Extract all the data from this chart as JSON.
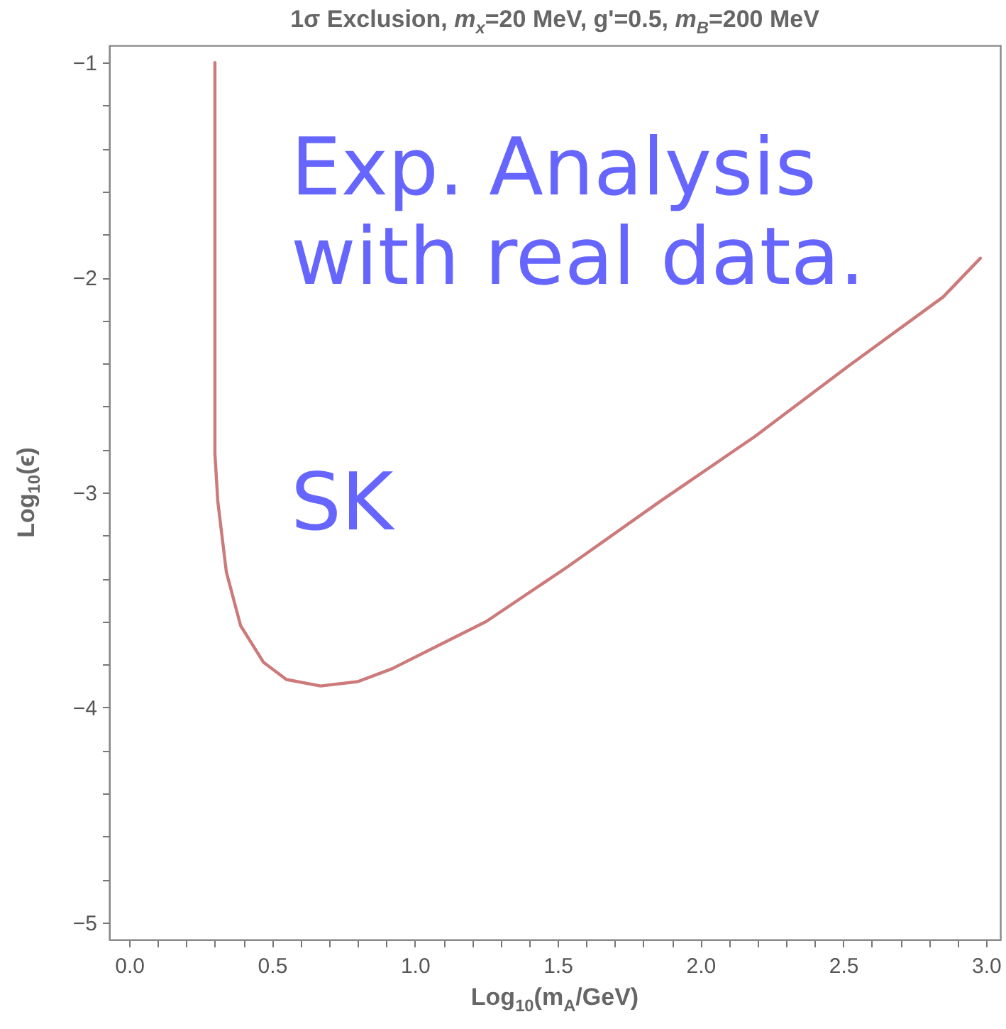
{
  "chart_data": {
    "type": "line",
    "title": "1σ Exclusion, m$_{x}$=20 MeV, g'=0.5, m$_{B}$=200 MeV",
    "xlabel": "Log$_{10}$(m$_{A}$/GeV)",
    "ylabel": "Log$_{10}$(ϵ)",
    "annotations": [
      "Exp. Analysis with real data.",
      "SK"
    ],
    "xlim": [
      -0.07,
      3.05
    ],
    "ylim": [
      -5.08,
      -0.92
    ],
    "xticks": [
      {
        "value": 0,
        "label": "0.0"
      },
      {
        "value": 0.1,
        "label": null
      },
      {
        "value": 0.2,
        "label": null
      },
      {
        "value": 0.3,
        "label": null
      },
      {
        "value": 0.4,
        "label": null
      },
      {
        "value": 0.5,
        "label": "0.5"
      },
      {
        "value": 0.6,
        "label": null
      },
      {
        "value": 0.7,
        "label": null
      },
      {
        "value": 0.8,
        "label": null
      },
      {
        "value": 0.9,
        "label": null
      },
      {
        "value": 1,
        "label": "1.0"
      },
      {
        "value": 1.1,
        "label": null
      },
      {
        "value": 1.2,
        "label": null
      },
      {
        "value": 1.3,
        "label": null
      },
      {
        "value": 1.4,
        "label": null
      },
      {
        "value": 1.5,
        "label": "1.5"
      },
      {
        "value": 1.6,
        "label": null
      },
      {
        "value": 1.7,
        "label": null
      },
      {
        "value": 1.8,
        "label": null
      },
      {
        "value": 1.9,
        "label": null
      },
      {
        "value": 2,
        "label": "2.0"
      },
      {
        "value": 2.1,
        "label": null
      },
      {
        "value": 2.2,
        "label": null
      },
      {
        "value": 2.3,
        "label": null
      },
      {
        "value": 2.4,
        "label": null
      },
      {
        "value": 2.5,
        "label": "2.5"
      },
      {
        "value": 2.6,
        "label": null
      },
      {
        "value": 2.7,
        "label": null
      },
      {
        "value": 2.8,
        "label": null
      },
      {
        "value": 2.9,
        "label": null
      },
      {
        "value": 3,
        "label": "3.0"
      }
    ],
    "yticks": [
      {
        "value": -1,
        "label": "−1"
      },
      {
        "value": -1.2,
        "label": null
      },
      {
        "value": -1.4,
        "label": null
      },
      {
        "value": -1.6,
        "label": null
      },
      {
        "value": -1.8,
        "label": null
      },
      {
        "value": -2,
        "label": "−2"
      },
      {
        "value": -2.2,
        "label": null
      },
      {
        "value": -2.4,
        "label": null
      },
      {
        "value": -2.6,
        "label": null
      },
      {
        "value": -2.8,
        "label": null
      },
      {
        "value": -3,
        "label": "−3"
      },
      {
        "value": -3.2,
        "label": null
      },
      {
        "value": -3.4,
        "label": null
      },
      {
        "value": -3.6,
        "label": null
      },
      {
        "value": -3.8,
        "label": null
      },
      {
        "value": -4,
        "label": "−4"
      },
      {
        "value": -4.2,
        "label": null
      },
      {
        "value": -4.4,
        "label": null
      },
      {
        "value": -4.6,
        "label": null
      },
      {
        "value": -4.8,
        "label": null
      },
      {
        "value": -5,
        "label": "−5"
      }
    ],
    "grid": false,
    "marker": "none",
    "line_style": "solid",
    "series": [
      {
        "color": "#cc7a7a",
        "x": [
          0.3,
          0.3,
          0.3,
          0.31,
          0.34,
          0.39,
          0.47,
          0.55,
          0.67,
          0.8,
          0.92,
          1.1,
          1.25,
          1.53,
          1.86,
          2.19,
          2.52,
          2.85,
          2.98
        ],
        "values": [
          -1.0,
          -2.0,
          -2.82,
          -3.04,
          -3.37,
          -3.62,
          -3.79,
          -3.87,
          -3.9,
          -3.88,
          -3.82,
          -3.7,
          -3.6,
          -3.35,
          -3.04,
          -2.74,
          -2.41,
          -2.09,
          -1.91
        ]
      }
    ]
  }
}
